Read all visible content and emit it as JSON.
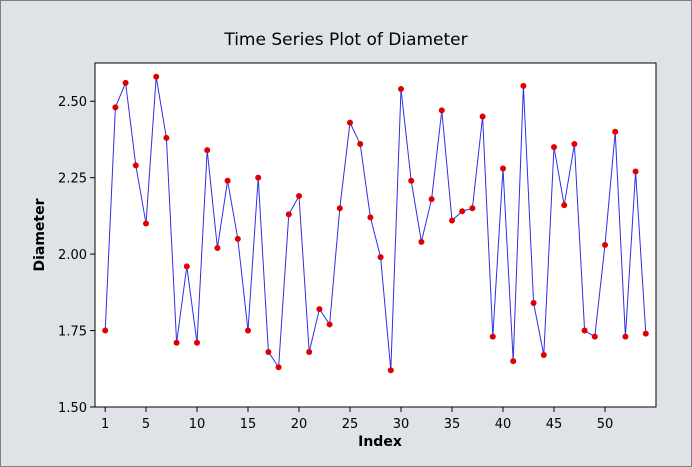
{
  "chart_data": {
    "type": "line",
    "title": "Time Series Plot of Diameter",
    "xlabel": "Index",
    "ylabel": "Diameter",
    "xlim": [
      0,
      55
    ],
    "ylim": [
      1.5,
      2.625
    ],
    "xticks": [
      1,
      5,
      10,
      15,
      20,
      25,
      30,
      35,
      40,
      45,
      50
    ],
    "yticks": [
      1.5,
      1.75,
      2.0,
      2.25,
      2.5
    ],
    "ytick_labels": [
      "1.50",
      "1.75",
      "2.00",
      "2.25",
      "2.50"
    ],
    "series": [
      {
        "line_color": "#2f2fe8",
        "marker_color": "#e00000",
        "x": [
          1,
          2,
          3,
          4,
          5,
          6,
          7,
          8,
          9,
          10,
          11,
          12,
          13,
          14,
          15,
          16,
          17,
          18,
          19,
          20,
          21,
          22,
          23,
          24,
          25,
          26,
          27,
          28,
          29,
          30,
          31,
          32,
          33,
          34,
          35,
          36,
          37,
          38,
          39,
          40,
          41,
          42,
          43,
          44,
          45,
          46,
          47,
          48,
          49,
          50,
          51,
          52,
          53,
          54
        ],
        "values": [
          1.75,
          2.48,
          2.56,
          2.29,
          2.1,
          2.58,
          2.38,
          1.71,
          1.96,
          1.71,
          2.34,
          2.02,
          2.24,
          2.05,
          1.75,
          2.25,
          1.68,
          1.63,
          2.13,
          2.19,
          1.68,
          1.82,
          1.77,
          2.15,
          2.43,
          2.36,
          2.12,
          1.99,
          1.62,
          2.54,
          2.24,
          2.04,
          2.18,
          2.47,
          2.11,
          2.14,
          2.15,
          2.45,
          1.73,
          2.28,
          1.65,
          2.55,
          1.84,
          1.67,
          2.35,
          2.16,
          2.36,
          1.75,
          1.73,
          2.03,
          2.4,
          1.73,
          2.27,
          1.74
        ]
      }
    ]
  }
}
